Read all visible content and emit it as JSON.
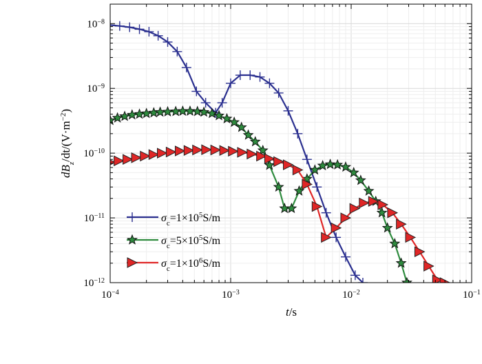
{
  "chart_data": {
    "type": "line",
    "xscale": "log",
    "yscale": "log",
    "xlim": [
      0.0001,
      0.1
    ],
    "ylim": [
      1e-12,
      2e-08
    ],
    "grid": true,
    "legend_position": "bottom-left",
    "xlabel": {
      "var": "t",
      "unit": "/s"
    },
    "ylabel": {
      "prefix": "dB",
      "sub": "z",
      "mid": "/dt/(V·m",
      "sup": "−2",
      "suffix": ")"
    },
    "x_ticks": [
      {
        "exp": -4,
        "base": "10",
        "sup": "−4"
      },
      {
        "exp": -3,
        "base": "10",
        "sup": "−3"
      },
      {
        "exp": -2,
        "base": "10",
        "sup": "−2"
      },
      {
        "exp": -1,
        "base": "10",
        "sup": "−1"
      }
    ],
    "y_ticks": [
      {
        "exp": -12,
        "base": "10",
        "sup": "−12"
      },
      {
        "exp": -11,
        "base": "10",
        "sup": "−11"
      },
      {
        "exp": -10,
        "base": "10",
        "sup": "−10"
      },
      {
        "exp": -9,
        "base": "10",
        "sup": "−9"
      },
      {
        "exp": -8,
        "base": "10",
        "sup": "−8"
      }
    ],
    "series": [
      {
        "name": "σc=1×10⁵S/m",
        "label": {
          "sym": "σ",
          "sub": "c",
          "pre": "=1×10",
          "sup": "5",
          "post": "S/m"
        },
        "color": "#2a2f8f",
        "marker": "plus",
        "x": [
          0.0001,
          0.00012,
          0.000145,
          0.000175,
          0.00021,
          0.00025,
          0.0003,
          0.00036,
          0.00043,
          0.00052,
          0.00062,
          0.00075,
          0.00085,
          0.001,
          0.0012,
          0.00145,
          0.00175,
          0.0021,
          0.0025,
          0.003,
          0.0036,
          0.0043,
          0.0052,
          0.0062,
          0.0075,
          0.009,
          0.0108,
          0.0125
        ],
        "y": [
          9.5e-09,
          9.2e-09,
          8.8e-09,
          8.2e-09,
          7.5e-09,
          6.5e-09,
          5.2e-09,
          3.7e-09,
          2.1e-09,
          9e-10,
          6e-10,
          4.2e-10,
          6e-10,
          1.2e-09,
          1.6e-09,
          1.6e-09,
          1.5e-09,
          1.2e-09,
          8.5e-10,
          4.5e-10,
          2e-10,
          8e-11,
          3e-11,
          1.2e-11,
          5e-12,
          2.5e-12,
          1.3e-12,
          1e-12
        ]
      },
      {
        "name": "σc=5×10⁵S/m",
        "label": {
          "sym": "σ",
          "sub": "c",
          "pre": "=5×10",
          "sup": "5",
          "post": "S/m"
        },
        "color": "#2e8b3e",
        "marker": "star",
        "x": [
          0.0001,
          0.000115,
          0.000132,
          0.000152,
          0.000175,
          0.0002,
          0.00023,
          0.00026,
          0.0003,
          0.00035,
          0.0004,
          0.00046,
          0.00053,
          0.0006,
          0.0007,
          0.0008,
          0.00093,
          0.00107,
          0.00123,
          0.0014,
          0.0016,
          0.00185,
          0.0021,
          0.0025,
          0.0028,
          0.0032,
          0.0037,
          0.0043,
          0.005,
          0.0058,
          0.0067,
          0.0077,
          0.009,
          0.0105,
          0.012,
          0.014,
          0.016,
          0.018,
          0.02,
          0.023,
          0.026,
          0.029
        ],
        "y": [
          3.2e-10,
          3.5e-10,
          3.7e-10,
          3.9e-10,
          4e-10,
          4.1e-10,
          4.2e-10,
          4.3e-10,
          4.35e-10,
          4.4e-10,
          4.45e-10,
          4.45e-10,
          4.4e-10,
          4.3e-10,
          4.1e-10,
          3.8e-10,
          3.4e-10,
          3e-10,
          2.5e-10,
          1.9e-10,
          1.5e-10,
          1.1e-10,
          6.5e-11,
          3e-11,
          1.4e-11,
          1.4e-11,
          2.6e-11,
          4e-11,
          5.5e-11,
          6.4e-11,
          6.7e-11,
          6.6e-11,
          6.1e-11,
          5e-11,
          3.8e-11,
          2.6e-11,
          1.8e-11,
          1.2e-11,
          7e-12,
          4e-12,
          2e-12,
          1e-12
        ]
      },
      {
        "name": "σc=1×10⁶S/m",
        "label": {
          "sym": "σ",
          "sub": "c",
          "pre": "=1×10",
          "sup": "6",
          "post": "S/m"
        },
        "color": "#e02626",
        "marker": "triangle-right",
        "x": [
          0.0001,
          0.000118,
          0.00014,
          0.000165,
          0.000195,
          0.00023,
          0.00027,
          0.00032,
          0.00038,
          0.00045,
          0.00053,
          0.00063,
          0.00075,
          0.00089,
          0.00105,
          0.00125,
          0.0015,
          0.0018,
          0.0021,
          0.0025,
          0.003,
          0.0036,
          0.0043,
          0.0052,
          0.0062,
          0.0075,
          0.009,
          0.0107,
          0.0128,
          0.0153,
          0.0183,
          0.022,
          0.026,
          0.031,
          0.037,
          0.044,
          0.052,
          0.06
        ],
        "y": [
          7.2e-11,
          7.6e-11,
          8e-11,
          8.5e-11,
          9e-11,
          9.5e-11,
          1e-10,
          1.04e-10,
          1.08e-10,
          1.1e-10,
          1.12e-10,
          1.13e-10,
          1.12e-10,
          1.1e-10,
          1.07e-10,
          1.03e-10,
          9.7e-11,
          9e-11,
          8.2e-11,
          7.4e-11,
          6.6e-11,
          5.5e-11,
          3.3e-11,
          1.5e-11,
          5e-12,
          7e-12,
          1e-11,
          1.4e-11,
          1.7e-11,
          1.8e-11,
          1.6e-11,
          1.2e-11,
          8e-12,
          5e-12,
          3e-12,
          1.8e-12,
          1.1e-12,
          1e-12
        ]
      }
    ]
  }
}
